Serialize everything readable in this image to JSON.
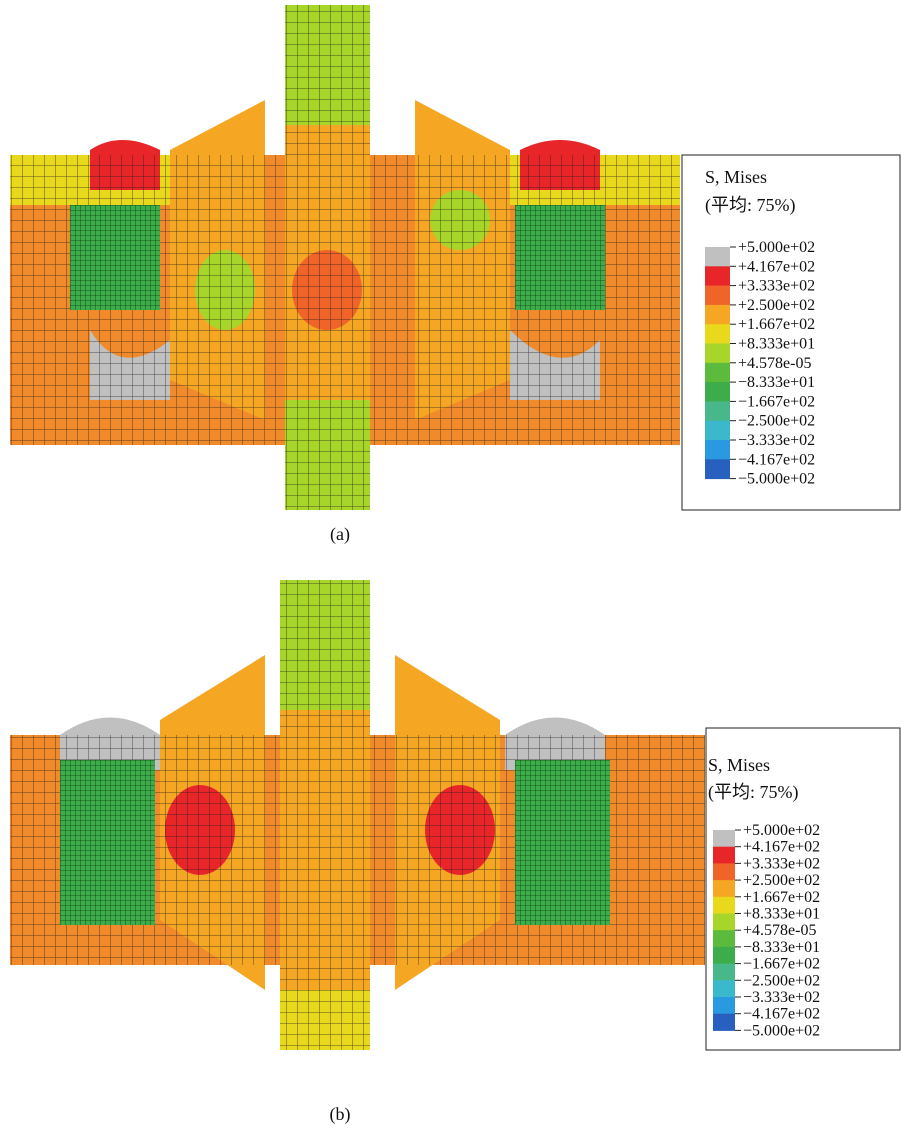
{
  "panels": [
    {
      "caption": "(a)",
      "legend": {
        "title": "S, Mises",
        "subtitle": "(平均: 75%)",
        "labels": [
          "+5.000e+02",
          "+4.167e+02",
          "+3.333e+02",
          "+2.500e+02",
          "+1.667e+02",
          "+8.333e+01",
          "+4.578e-05",
          "−8.333e+01",
          "−1.667e+02",
          "−2.500e+02",
          "−3.333e+02",
          "−4.167e+02",
          "−5.000e+02"
        ]
      }
    },
    {
      "caption": "(b)",
      "legend": {
        "title": "S, Mises",
        "subtitle": "(平均: 75%)",
        "labels": [
          "+5.000e+02",
          "+4.167e+02",
          "+3.333e+02",
          "+2.500e+02",
          "+1.667e+02",
          "+8.333e+01",
          "+4.578e-05",
          "−8.333e+01",
          "−1.667e+02",
          "−2.500e+02",
          "−3.333e+02",
          "−4.167e+02",
          "−5.000e+02"
        ]
      }
    }
  ]
}
